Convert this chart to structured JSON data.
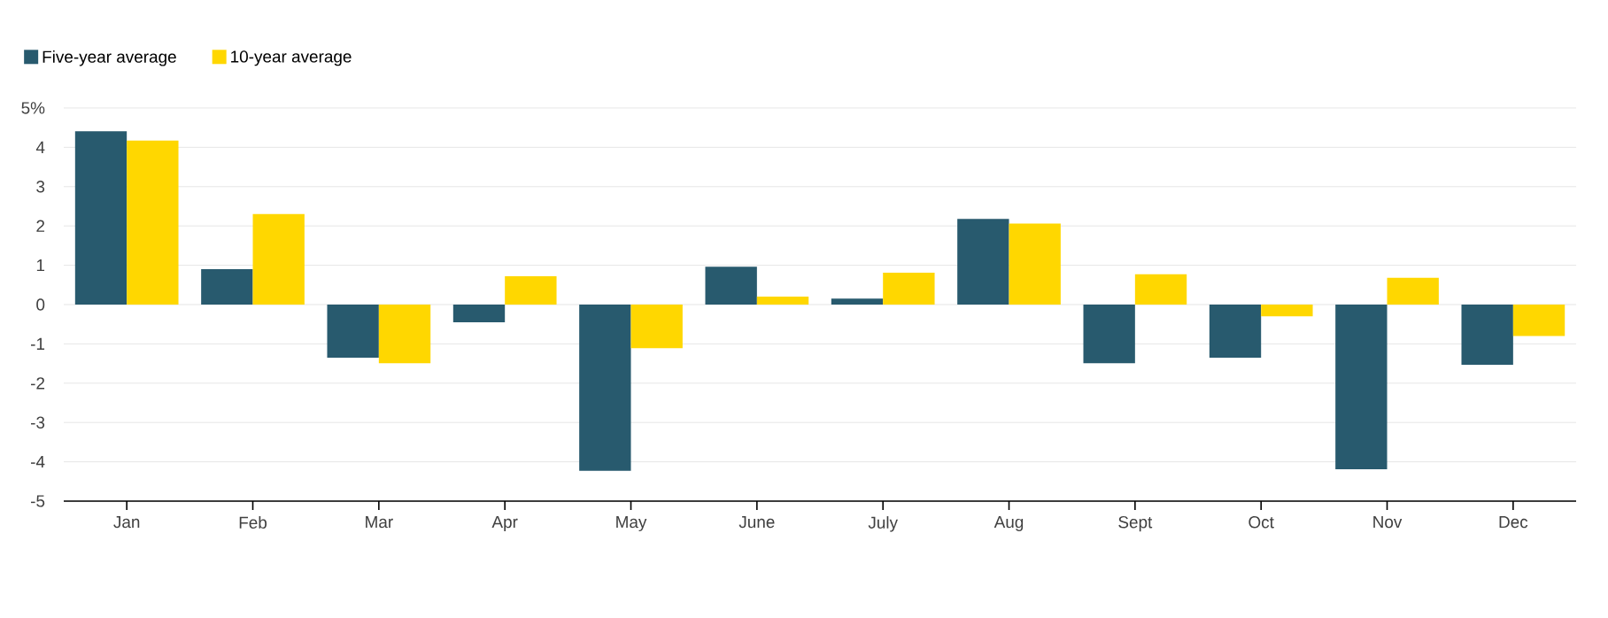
{
  "chart_data": {
    "type": "bar",
    "categories": [
      "Jan",
      "Feb",
      "Mar",
      "Apr",
      "May",
      "June",
      "July",
      "Aug",
      "Sept",
      "Oct",
      "Nov",
      "Dec"
    ],
    "series": [
      {
        "name": "Five-year average",
        "color": "#285a6e",
        "values": [
          4.41,
          0.9,
          -1.35,
          -0.45,
          -4.23,
          0.96,
          0.15,
          2.18,
          -1.49,
          -1.35,
          -4.19,
          -1.53
        ]
      },
      {
        "name": "10-year average",
        "color": "#ffd700",
        "values": [
          4.17,
          2.3,
          -1.49,
          0.72,
          -1.11,
          0.2,
          0.81,
          2.06,
          0.77,
          -0.3,
          0.68,
          -0.8
        ]
      }
    ],
    "ylim": [
      -5,
      5
    ],
    "yticks": [
      -5,
      -4,
      -3,
      -2,
      -1,
      0,
      1,
      2,
      3,
      4,
      {
        "value": 5,
        "label": "5%"
      }
    ],
    "grid": "y",
    "legend": "top left"
  }
}
